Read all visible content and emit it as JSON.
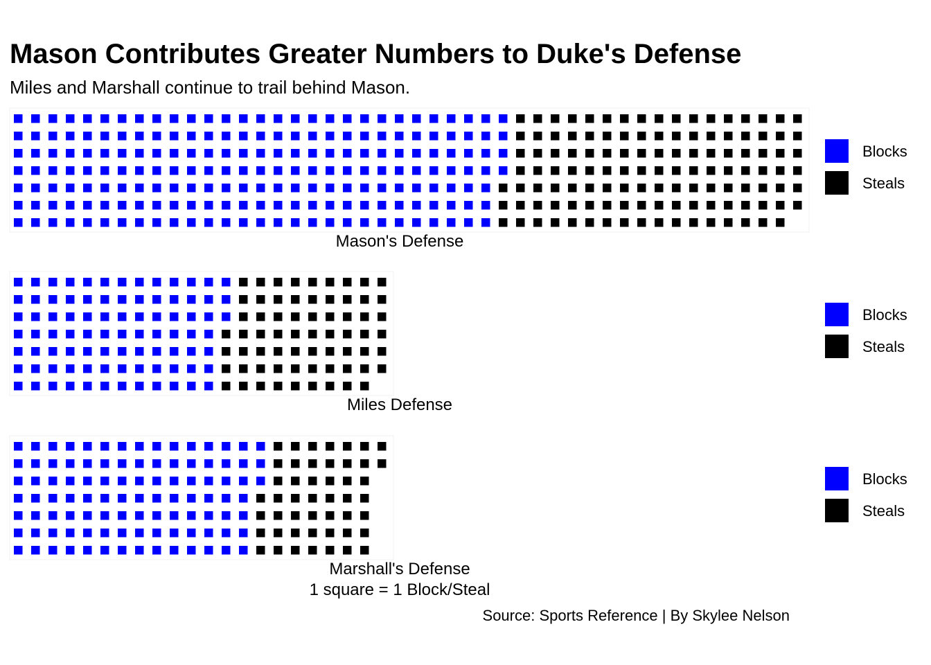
{
  "chart_data": {
    "type": "waffle",
    "title": "Mason Contributes Greater Numbers to Duke's Defense",
    "subtitle": "Miles and Marshall continue to trail behind Mason.",
    "unit_note": "1 square = 1 Block/Steal",
    "caption": "Source: Sports Reference | By Skylee Nelson",
    "rows": 7,
    "categories": [
      "Blocks",
      "Steals"
    ],
    "colors": {
      "Blocks": "#0000ff",
      "Steals": "#000000"
    },
    "panels": [
      {
        "label": "Mason's Defense",
        "values": {
          "Blocks": 200,
          "Steals": 121
        }
      },
      {
        "label": "Miles Defense",
        "values": {
          "Blocks": 87,
          "Steals": 66
        }
      },
      {
        "label": "Marshall's Defense",
        "values": {
          "Blocks": 101,
          "Steals": 48
        }
      }
    ],
    "legend": {
      "placement": "right",
      "entries": [
        "Blocks",
        "Steals"
      ]
    }
  }
}
